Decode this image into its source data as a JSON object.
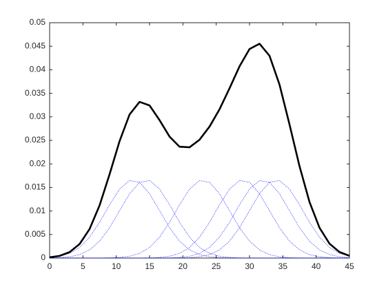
{
  "chart_data": {
    "type": "line",
    "x": [
      0,
      1.5,
      3,
      4.5,
      6,
      7.5,
      9,
      10.5,
      12,
      13.5,
      15,
      16.5,
      18,
      19.5,
      21,
      22.5,
      24,
      25.5,
      27,
      28.5,
      30,
      31.5,
      33,
      34.5,
      36,
      37.5,
      39,
      40.5,
      42,
      43.5,
      45
    ],
    "series": [
      {
        "color": "#000000",
        "style": "solid",
        "values": [
          0.00015,
          0.00046,
          0.00126,
          0.00298,
          0.00617,
          0.0112,
          0.01781,
          0.02485,
          0.03051,
          0.03318,
          0.03242,
          0.02929,
          0.02579,
          0.02365,
          0.02353,
          0.02514,
          0.02793,
          0.03161,
          0.03606,
          0.04073,
          0.04441,
          0.04553,
          0.04298,
          0.03685,
          0.02839,
          0.01953,
          0.01192,
          0.00644,
          0.00306,
          0.00128,
          0.00046
        ]
      },
      {
        "color": "#0000ff",
        "style": "dotted",
        "values": [
          0.00013,
          0.00038,
          0.00099,
          0.00225,
          0.00443,
          0.0076,
          0.01132,
          0.01465,
          0.01647,
          0.01609,
          0.01366,
          0.01007,
          0.00645,
          0.00359,
          0.00174,
          0.00073,
          0.00027,
          8e-05,
          2e-05,
          0,
          0,
          0,
          0,
          0,
          0,
          0,
          0,
          0,
          0,
          0,
          0
        ]
      },
      {
        "color": "#0000ff",
        "style": "dotted",
        "values": [
          2e-05,
          8e-05,
          0.00027,
          0.00073,
          0.00174,
          0.00359,
          0.00645,
          0.01007,
          0.01366,
          0.01609,
          0.01647,
          0.01465,
          0.01132,
          0.0076,
          0.00443,
          0.00225,
          0.00099,
          0.00038,
          0.00013,
          4e-05,
          1e-05,
          0,
          0,
          0,
          0,
          0,
          0,
          0,
          0,
          0,
          0
        ]
      },
      {
        "color": "#0000ff",
        "style": "dotted",
        "values": [
          0,
          0,
          0,
          0,
          0,
          1e-05,
          4e-05,
          0.00013,
          0.00038,
          0.00099,
          0.00225,
          0.00443,
          0.0076,
          0.01132,
          0.01465,
          0.01647,
          0.01609,
          0.01366,
          0.01007,
          0.00645,
          0.00359,
          0.00174,
          0.00073,
          0.00027,
          8e-05,
          2e-05,
          0,
          0,
          0,
          0,
          0
        ]
      },
      {
        "color": "#0000ff",
        "style": "dotted",
        "values": [
          0,
          0,
          0,
          0,
          0,
          0,
          0,
          0,
          0,
          1e-05,
          4e-05,
          0.00013,
          0.00038,
          0.00099,
          0.00225,
          0.00443,
          0.0076,
          0.01132,
          0.01465,
          0.01647,
          0.01609,
          0.01366,
          0.01007,
          0.00645,
          0.00359,
          0.00174,
          0.00073,
          0.00027,
          8e-05,
          2e-05,
          0
        ]
      },
      {
        "color": "#0000ff",
        "style": "dotted",
        "values": [
          0,
          0,
          0,
          0,
          0,
          0,
          0,
          0,
          0,
          0,
          0,
          1e-05,
          4e-05,
          0.00013,
          0.00038,
          0.00099,
          0.00225,
          0.00443,
          0.0076,
          0.01132,
          0.01465,
          0.01647,
          0.01609,
          0.01366,
          0.01007,
          0.00645,
          0.00359,
          0.00174,
          0.00073,
          0.00027,
          8e-05
        ]
      },
      {
        "color": "#0000ff",
        "style": "dotted",
        "values": [
          0,
          0,
          0,
          0,
          0,
          0,
          0,
          0,
          0,
          0,
          0,
          0,
          0,
          2e-05,
          8e-05,
          0.00027,
          0.00073,
          0.00174,
          0.00359,
          0.00645,
          0.01007,
          0.01366,
          0.01609,
          0.01647,
          0.01465,
          0.01132,
          0.0076,
          0.00443,
          0.00225,
          0.00099,
          0.00038
        ]
      }
    ],
    "xlim": [
      0,
      45
    ],
    "xticks": [
      0,
      5,
      10,
      15,
      20,
      25,
      30,
      35,
      40,
      45
    ],
    "ylim": [
      0,
      0.05
    ],
    "yticks": [
      0,
      0.005,
      0.01,
      0.015,
      0.02,
      0.025,
      0.03,
      0.035,
      0.04,
      0.045,
      0.05
    ],
    "grid": false
  }
}
